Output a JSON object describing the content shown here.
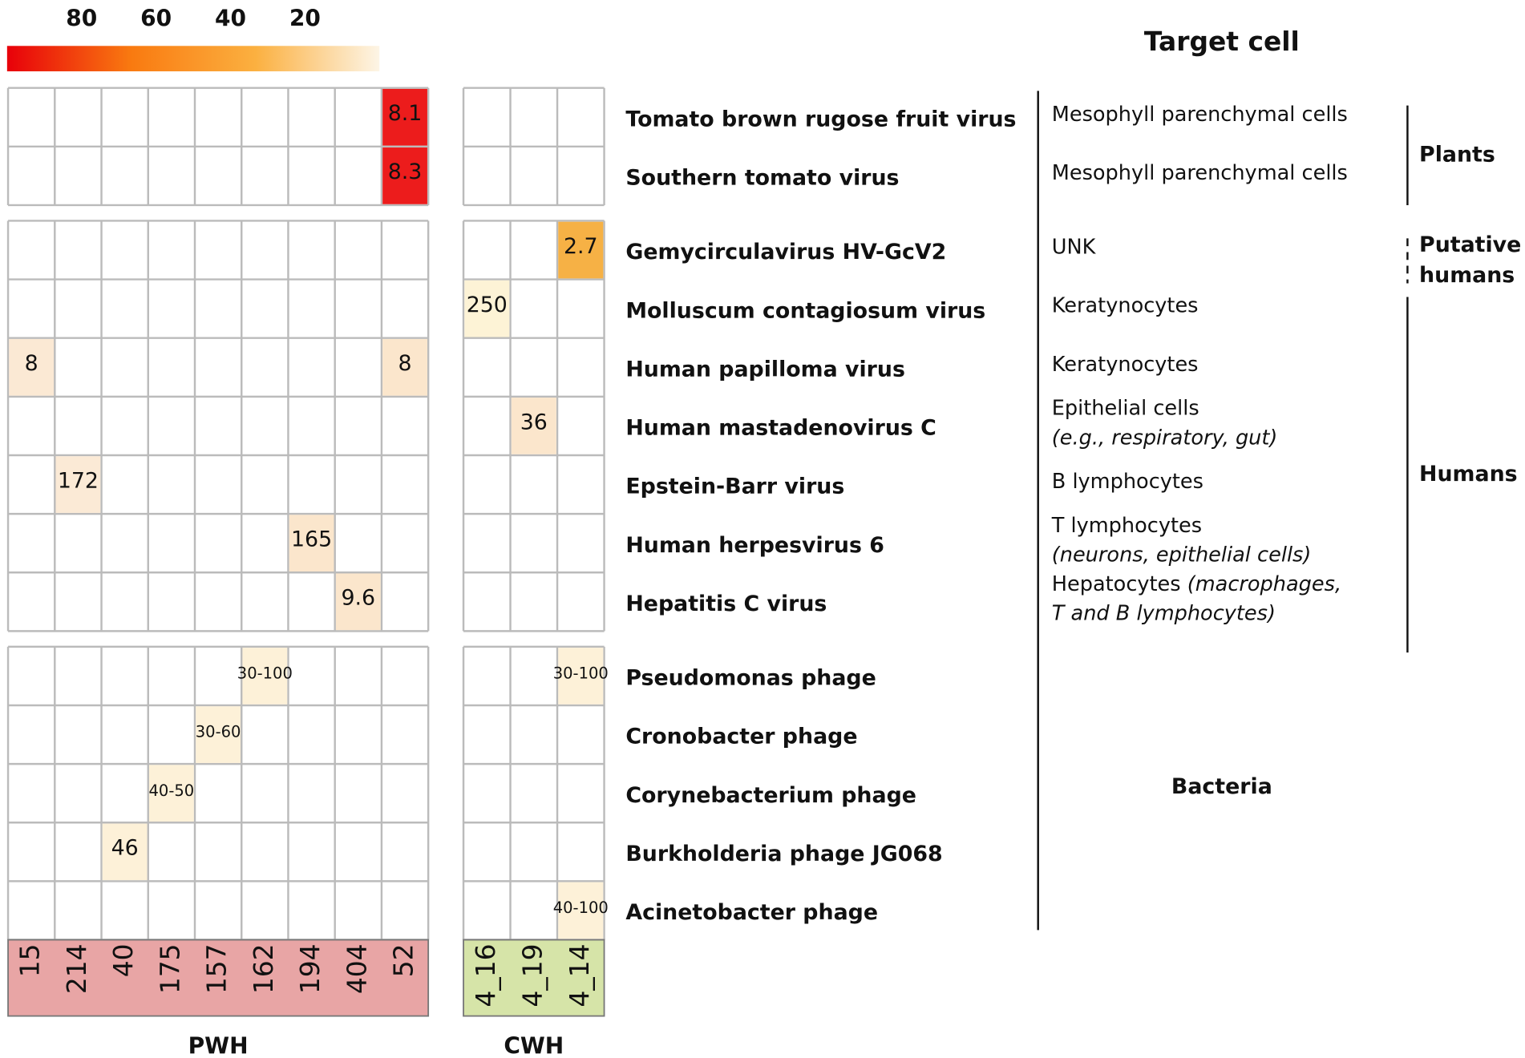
{
  "chart_data": {
    "type": "heatmap",
    "title": "Target cell",
    "colorbar": {
      "lim": [
        100,
        0
      ],
      "ticks": [
        80,
        60,
        40,
        20
      ],
      "colors": [
        "#e8000a",
        "#f97a10",
        "#fbb040",
        "#fdf5e6"
      ]
    },
    "groups": [
      {
        "name": "PWH",
        "color": "#e8a5a5",
        "columns": [
          "15",
          "214",
          "40",
          "175",
          "157",
          "162",
          "194",
          "404",
          "52"
        ]
      },
      {
        "name": "CWH",
        "color": "#d6e4a8",
        "columns": [
          "4_16",
          "4_19",
          "4_14"
        ]
      }
    ],
    "rows": [
      {
        "name": "Tomato brown rugose fruit virus",
        "target": [
          [
            {
              "text": "Mesophyll parenchymal cells",
              "italic": false
            }
          ]
        ]
      },
      {
        "name": "Southern tomato virus",
        "target": [
          [
            {
              "text": "Mesophyll parenchymal cells",
              "italic": false
            }
          ]
        ]
      },
      {
        "name": "Gemycirculavirus HV-GcV2",
        "target": [
          [
            {
              "text": "UNK",
              "italic": false
            }
          ]
        ]
      },
      {
        "name": "Molluscum contagiosum virus",
        "target": [
          [
            {
              "text": "Keratynocytes",
              "italic": false
            }
          ]
        ]
      },
      {
        "name": "Human papilloma virus",
        "target": [
          [
            {
              "text": "Keratynocytes",
              "italic": false
            }
          ]
        ]
      },
      {
        "name": "Human mastadenovirus C",
        "target": [
          [
            {
              "text": "Epithelial cells",
              "italic": false
            }
          ],
          [
            {
              "text": "(e.g., respiratory, gut)",
              "italic": true
            }
          ]
        ]
      },
      {
        "name": "Epstein-Barr virus",
        "target": [
          [
            {
              "text": "B lymphocytes",
              "italic": false
            }
          ]
        ]
      },
      {
        "name": "Human herpesvirus 6",
        "target": [
          [
            {
              "text": "T lymphocytes",
              "italic": false
            }
          ],
          [
            {
              "text": "(neurons, epithelial cells)",
              "italic": true
            }
          ]
        ]
      },
      {
        "name": "Hepatitis C virus",
        "target": [
          [
            {
              "text": "Hepatocytes",
              "italic": false
            },
            {
              "text": "(macrophages,",
              "italic": true
            }
          ],
          [
            {
              "text": "T and B lymphocytes)",
              "italic": true
            }
          ]
        ]
      },
      {
        "name": "Pseudomonas phage",
        "target": []
      },
      {
        "name": "Cronobacter phage",
        "target": []
      },
      {
        "name": "Corynebacterium phage",
        "target": []
      },
      {
        "name": "Burkholderia phage JG068",
        "target": []
      },
      {
        "name": "Acinetobacter phage",
        "target": []
      }
    ],
    "hosts": [
      {
        "name": [
          "Plants"
        ],
        "rows": [
          0,
          1
        ],
        "line": "solid"
      },
      {
        "name": [
          "Putative",
          "humans"
        ],
        "rows": [
          2,
          2
        ],
        "line": "dashed"
      },
      {
        "name": [
          "Humans"
        ],
        "rows": [
          3,
          8
        ],
        "line": "solid"
      },
      {
        "name": [
          "Bacteria"
        ],
        "rows": [
          9,
          13
        ],
        "line": "none"
      }
    ],
    "cells": [
      {
        "row": 0,
        "group": 0,
        "col": 8,
        "value": 8.1,
        "color": "#ec1c1c"
      },
      {
        "row": 1,
        "group": 0,
        "col": 8,
        "value": 8.3,
        "color": "#ec1c1c"
      },
      {
        "row": 2,
        "group": 1,
        "col": 2,
        "value": 2.7,
        "color": "#f6b145"
      },
      {
        "row": 3,
        "group": 1,
        "col": 0,
        "value": 250,
        "color": "#fdf3d6"
      },
      {
        "row": 4,
        "group": 0,
        "col": 0,
        "value": 8,
        "color": "#fbe9d4"
      },
      {
        "row": 4,
        "group": 0,
        "col": 8,
        "value": 8,
        "color": "#fbe6cc"
      },
      {
        "row": 5,
        "group": 1,
        "col": 1,
        "value": 36,
        "color": "#fbe6cc"
      },
      {
        "row": 6,
        "group": 0,
        "col": 1,
        "value": 172,
        "color": "#fbead6"
      },
      {
        "row": 7,
        "group": 0,
        "col": 6,
        "value": 165,
        "color": "#fbe6cc"
      },
      {
        "row": 8,
        "group": 0,
        "col": 7,
        "value": 9.6,
        "color": "#fbe6cc"
      },
      {
        "row": 9,
        "group": 0,
        "col": 5,
        "value": "30-100",
        "color": "#fdf1d8"
      },
      {
        "row": 9,
        "group": 1,
        "col": 2,
        "value": "30-100",
        "color": "#fdf1d8"
      },
      {
        "row": 10,
        "group": 0,
        "col": 4,
        "value": "30-60",
        "color": "#fdf1d8"
      },
      {
        "row": 11,
        "group": 0,
        "col": 3,
        "value": "40-50",
        "color": "#fdf1d8"
      },
      {
        "row": 12,
        "group": 0,
        "col": 2,
        "value": 46,
        "color": "#fdf1d8"
      },
      {
        "row": 13,
        "group": 1,
        "col": 2,
        "value": "40-100",
        "color": "#fdf1d8"
      }
    ]
  }
}
